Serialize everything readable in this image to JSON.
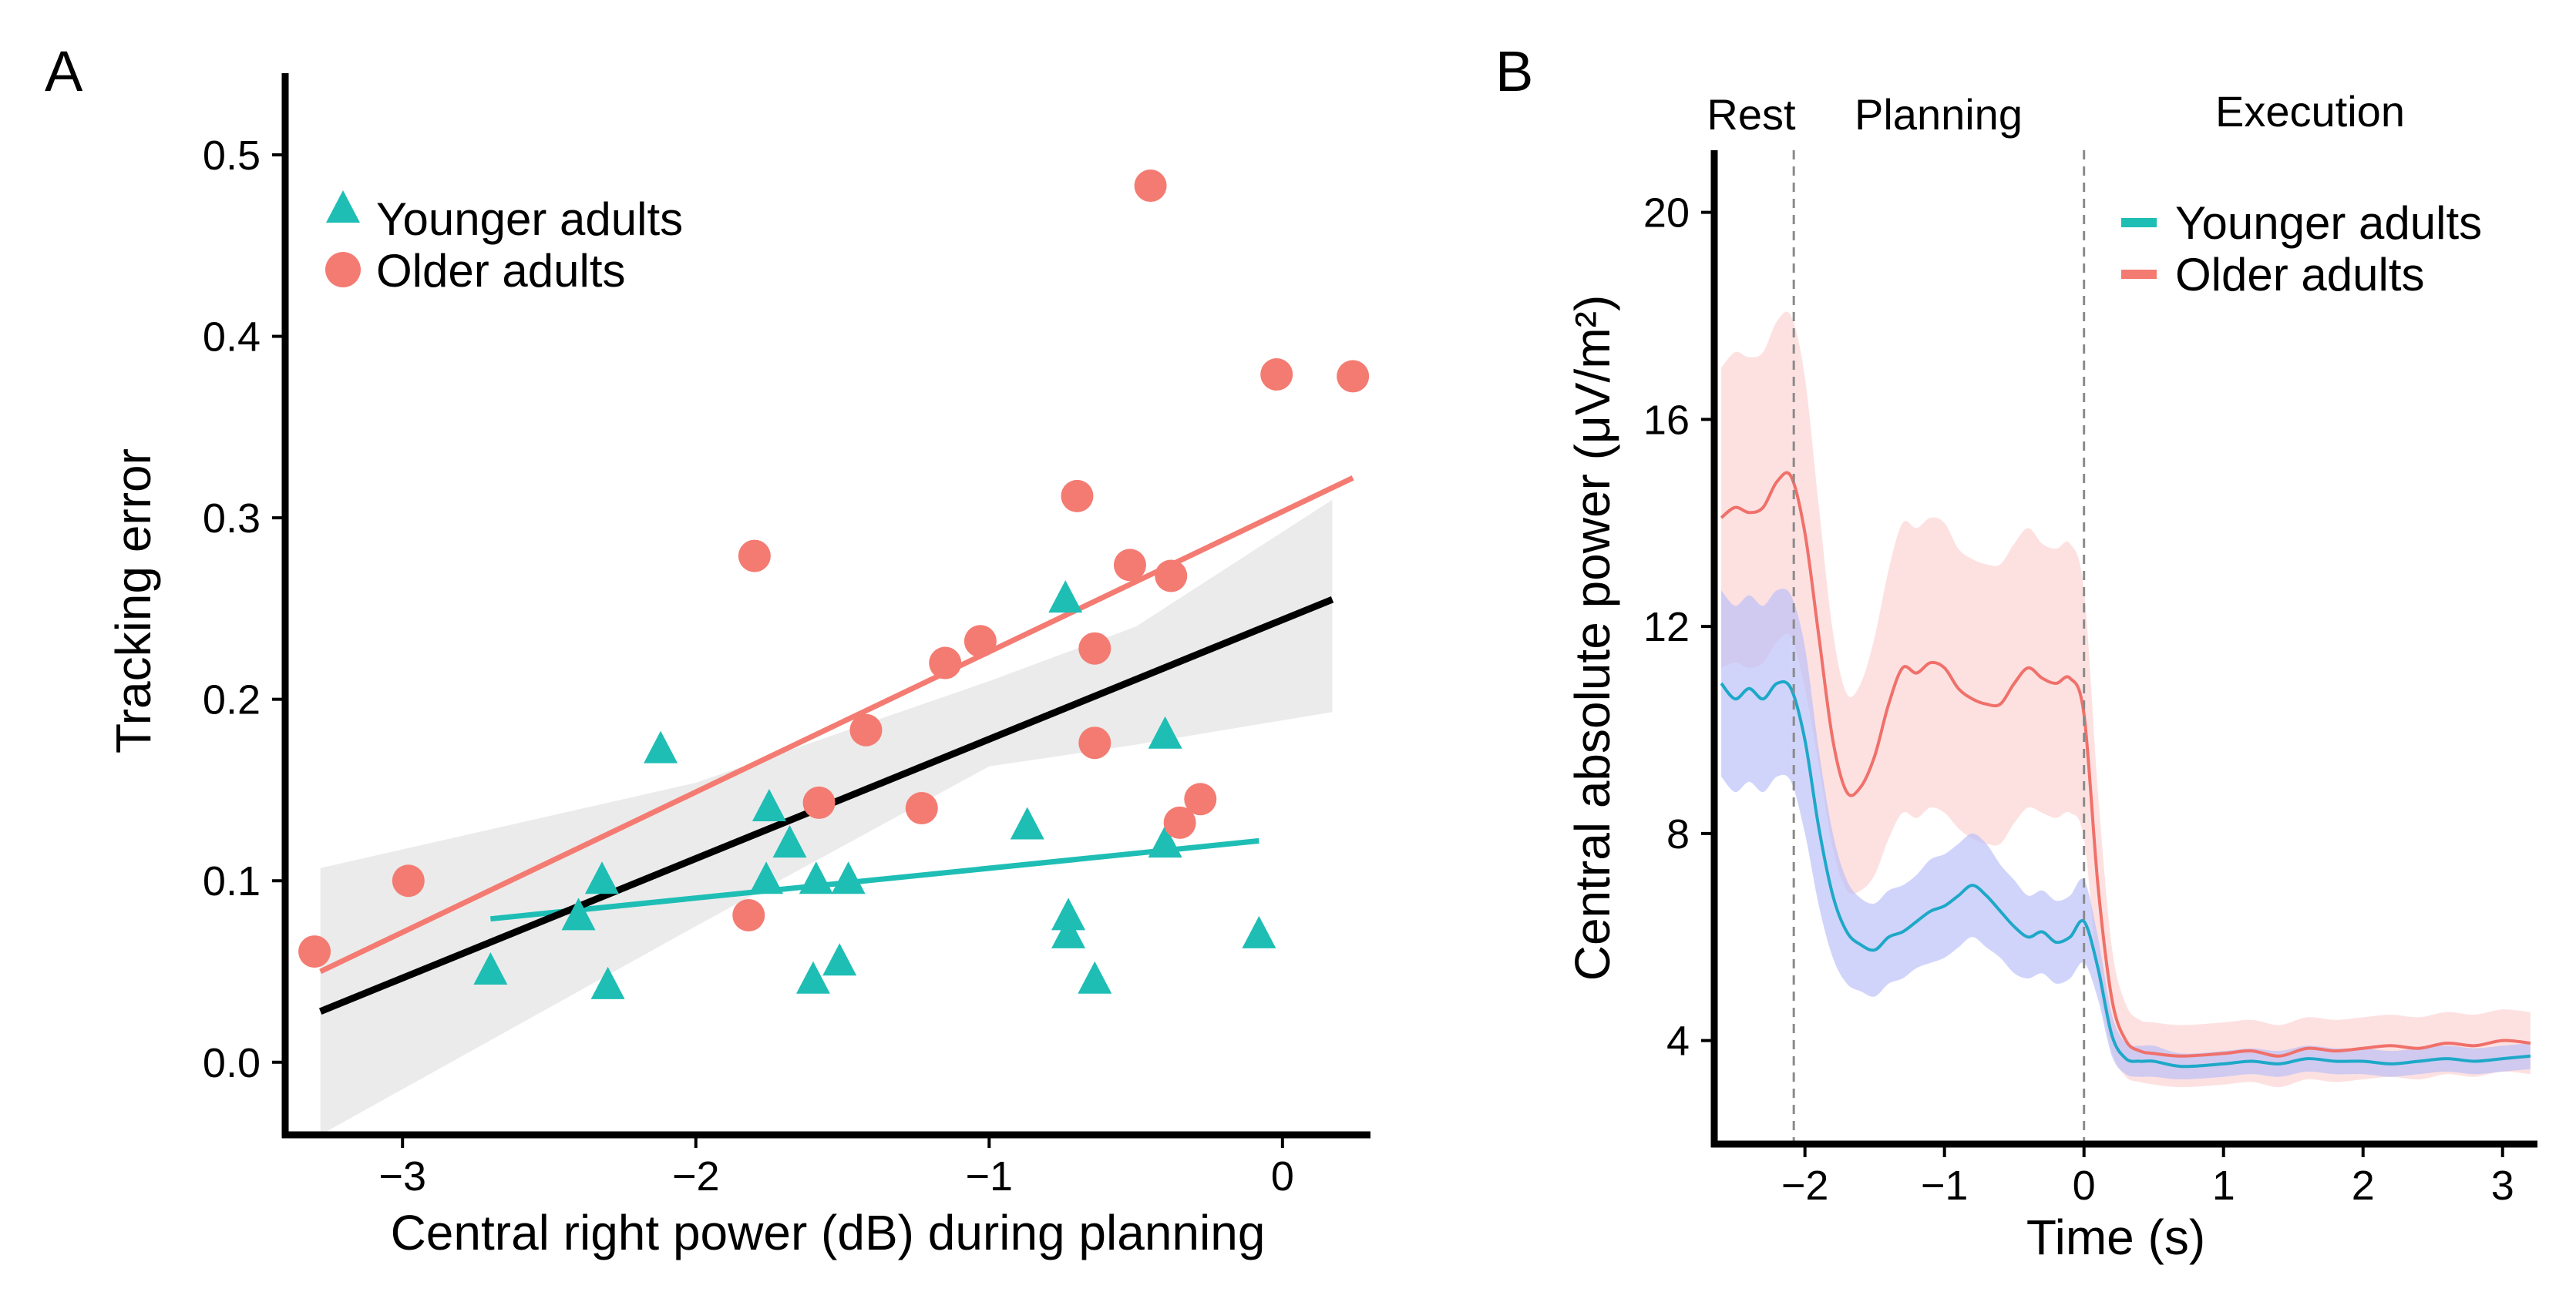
{
  "chart_data": [
    {
      "panel": "A",
      "type": "scatter",
      "xlabel": "Central right power (dB) during planning",
      "ylabel": "Tracking error",
      "xlim": [
        -3.4,
        0.3
      ],
      "ylim": [
        -0.04,
        0.545
      ],
      "xticks": [
        -3,
        -2,
        -1,
        0
      ],
      "xtick_labels": [
        "−3",
        "−2",
        "−1",
        "0"
      ],
      "yticks": [
        0.0,
        0.1,
        0.2,
        0.3,
        0.4,
        0.5
      ],
      "ytick_labels": [
        "0.0",
        "0.1",
        "0.2",
        "0.3",
        "0.4",
        "0.5"
      ],
      "legend_position": "top-left",
      "series": [
        {
          "name": "Younger adults",
          "marker": "triangle",
          "color": "#1ebeb5",
          "points": [
            [
              -2.7,
              0.05
            ],
            [
              -2.4,
              0.08
            ],
            [
              -2.32,
              0.1
            ],
            [
              -2.3,
              0.042
            ],
            [
              -2.12,
              0.172
            ],
            [
              -1.76,
              0.1
            ],
            [
              -1.75,
              0.14
            ],
            [
              -1.68,
              0.12
            ],
            [
              -1.6,
              0.045
            ],
            [
              -1.59,
              0.1
            ],
            [
              -1.51,
              0.055
            ],
            [
              -1.48,
              0.1
            ],
            [
              -0.87,
              0.13
            ],
            [
              -0.74,
              0.255
            ],
            [
              -0.73,
              0.08
            ],
            [
              -0.73,
              0.07
            ],
            [
              -0.64,
              0.045
            ],
            [
              -0.4,
              0.18
            ],
            [
              -0.4,
              0.12
            ],
            [
              -0.08,
              0.07
            ]
          ],
          "fit": [
            [
              -2.7,
              0.079
            ],
            [
              -0.08,
              0.122
            ]
          ]
        },
        {
          "name": "Older adults",
          "marker": "circle",
          "color": "#f47b72",
          "points": [
            [
              -3.3,
              0.061
            ],
            [
              -2.98,
              0.1
            ],
            [
              -1.8,
              0.279
            ],
            [
              -1.82,
              0.081
            ],
            [
              -1.58,
              0.143
            ],
            [
              -1.42,
              0.183
            ],
            [
              -1.23,
              0.14
            ],
            [
              -1.15,
              0.22
            ],
            [
              -1.03,
              0.232
            ],
            [
              -0.7,
              0.312
            ],
            [
              -0.64,
              0.228
            ],
            [
              -0.64,
              0.176
            ],
            [
              -0.52,
              0.274
            ],
            [
              -0.45,
              0.483
            ],
            [
              -0.38,
              0.268
            ],
            [
              -0.35,
              0.132
            ],
            [
              -0.28,
              0.145
            ],
            [
              -0.02,
              0.379
            ],
            [
              0.24,
              0.378
            ]
          ],
          "fit": [
            [
              -3.28,
              0.05
            ],
            [
              0.24,
              0.322
            ]
          ]
        }
      ],
      "combined_fit": {
        "color": "#000000",
        "line": [
          [
            -3.28,
            0.028
          ],
          [
            0.17,
            0.255
          ]
        ],
        "ci_upper": [
          [
            -3.28,
            0.107
          ],
          [
            -2.0,
            0.154
          ],
          [
            -1.0,
            0.21
          ],
          [
            -0.5,
            0.24
          ],
          [
            0.17,
            0.31
          ]
        ],
        "ci_lower": [
          [
            -3.28,
            -0.06
          ],
          [
            -2.0,
            0.075
          ],
          [
            -1.0,
            0.163
          ],
          [
            -0.5,
            0.175
          ],
          [
            0.17,
            0.193
          ]
        ]
      }
    },
    {
      "panel": "B",
      "type": "line",
      "xlabel": "Time (s)",
      "ylabel": "Central absolute power (μV/m²)",
      "xlim": [
        -2.65,
        3.25
      ],
      "ylim": [
        2.0,
        21.2
      ],
      "xticks": [
        -2,
        -1,
        0,
        1,
        2,
        3
      ],
      "xtick_labels": [
        "−2",
        "−1",
        "0",
        "1",
        "2",
        "3"
      ],
      "yticks": [
        4,
        8,
        12,
        16,
        20
      ],
      "ytick_labels": [
        "4",
        "8",
        "12",
        "16",
        "20"
      ],
      "legend_position": "top-right",
      "phase_markers": [
        -2.08,
        0.0
      ],
      "phase_labels": [
        "Rest",
        "Planning",
        "Execution"
      ],
      "x": [
        -2.6,
        -2.5,
        -2.4,
        -2.3,
        -2.2,
        -2.1,
        -2.0,
        -1.9,
        -1.8,
        -1.7,
        -1.6,
        -1.5,
        -1.4,
        -1.3,
        -1.2,
        -1.1,
        -1.0,
        -0.9,
        -0.8,
        -0.7,
        -0.6,
        -0.5,
        -0.4,
        -0.3,
        -0.2,
        -0.1,
        0.0,
        0.1,
        0.2,
        0.3,
        0.4,
        0.5,
        0.7,
        1.0,
        1.2,
        1.4,
        1.6,
        1.8,
        2.0,
        2.2,
        2.4,
        2.6,
        2.8,
        3.0,
        3.2
      ],
      "series": [
        {
          "name": "Younger adults",
          "color": "#1ea8c8",
          "band_color": "#b9bdf8",
          "values": [
            10.9,
            10.6,
            10.8,
            10.6,
            10.9,
            10.8,
            9.8,
            8.1,
            6.8,
            6.1,
            5.85,
            5.75,
            6.0,
            6.1,
            6.3,
            6.5,
            6.6,
            6.8,
            7.0,
            6.8,
            6.5,
            6.2,
            6.0,
            6.1,
            5.9,
            6.0,
            6.3,
            5.4,
            4.1,
            3.65,
            3.6,
            3.6,
            3.5,
            3.55,
            3.6,
            3.55,
            3.65,
            3.6,
            3.6,
            3.55,
            3.6,
            3.65,
            3.6,
            3.65,
            3.7
          ],
          "band": [
            1.8,
            1.8,
            1.8,
            1.8,
            1.8,
            1.8,
            1.8,
            1.5,
            1.2,
            1.0,
            0.9,
            0.9,
            0.9,
            0.9,
            0.9,
            1.0,
            1.0,
            1.0,
            1.0,
            1.0,
            0.9,
            0.9,
            0.8,
            0.8,
            0.8,
            0.8,
            0.8,
            0.6,
            0.4,
            0.3,
            0.3,
            0.3,
            0.25,
            0.25,
            0.25,
            0.25,
            0.25,
            0.25,
            0.25,
            0.25,
            0.25,
            0.25,
            0.25,
            0.25,
            0.25
          ]
        },
        {
          "name": "Older adults",
          "color": "#f0706a",
          "band_color": "#fddada",
          "values": [
            14.1,
            14.3,
            14.2,
            14.3,
            14.8,
            14.9,
            13.8,
            11.8,
            9.8,
            8.8,
            8.9,
            9.5,
            10.5,
            11.2,
            11.1,
            11.3,
            11.2,
            10.8,
            10.6,
            10.5,
            10.5,
            10.9,
            11.2,
            11.0,
            10.9,
            11.0,
            10.3,
            7.0,
            4.8,
            4.0,
            3.8,
            3.75,
            3.7,
            3.75,
            3.8,
            3.7,
            3.85,
            3.8,
            3.85,
            3.9,
            3.85,
            3.95,
            3.9,
            4.0,
            3.95
          ],
          "band": [
            2.9,
            3.0,
            3.0,
            3.0,
            3.1,
            3.1,
            3.0,
            2.5,
            2.1,
            1.9,
            2.0,
            2.3,
            2.6,
            2.8,
            2.8,
            2.8,
            2.8,
            2.7,
            2.7,
            2.7,
            2.7,
            2.7,
            2.7,
            2.6,
            2.6,
            2.6,
            2.4,
            1.8,
            1.0,
            0.7,
            0.6,
            0.6,
            0.6,
            0.6,
            0.6,
            0.6,
            0.6,
            0.6,
            0.6,
            0.6,
            0.6,
            0.6,
            0.6,
            0.6,
            0.6
          ]
        }
      ]
    }
  ]
}
